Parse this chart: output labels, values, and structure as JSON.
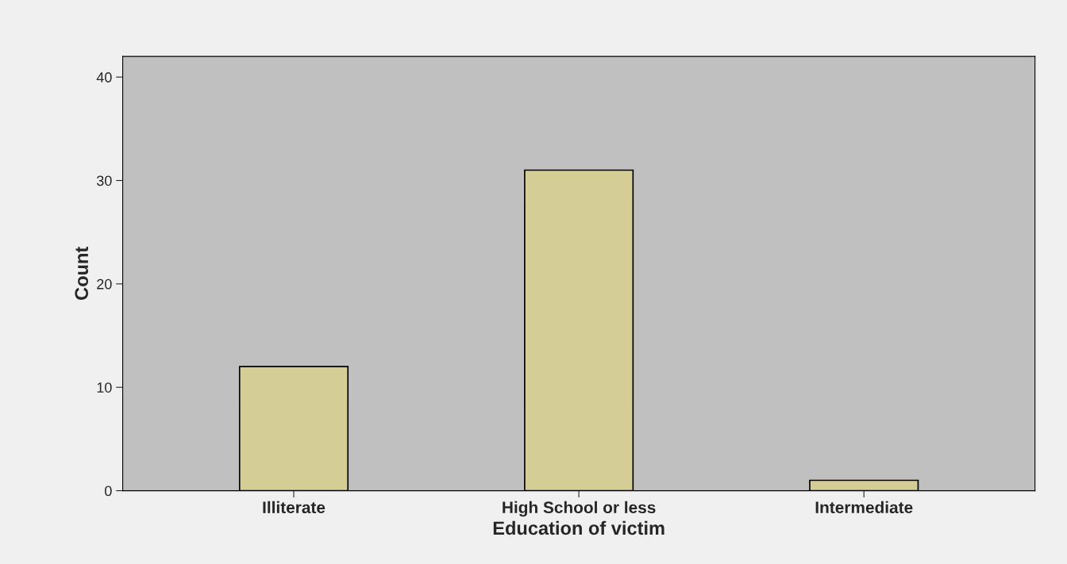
{
  "chart_data": {
    "type": "bar",
    "xlabel": "Education of victim",
    "ylabel": "Count",
    "categories": [
      "Illiterate",
      "High School or less",
      "Intermediate"
    ],
    "values": [
      12,
      31,
      1
    ],
    "color": "#d4ce96",
    "ylim": [
      0,
      42
    ],
    "yticks": [
      0,
      10,
      20,
      30,
      40
    ],
    "grid": false
  }
}
